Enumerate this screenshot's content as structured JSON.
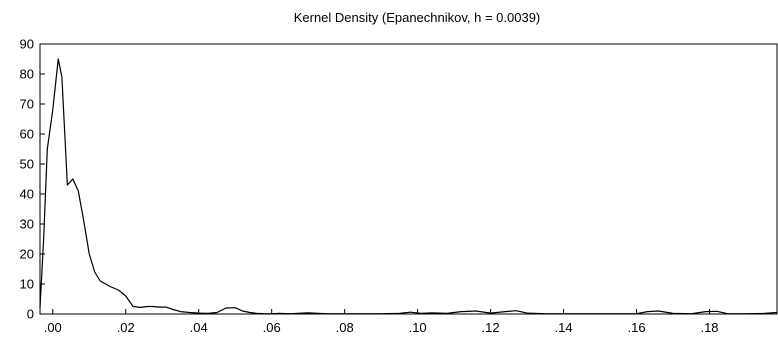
{
  "chart_data": {
    "type": "line",
    "title": "Kernel Density (Epanechnikov, h = 0.0039)",
    "xlabel": "",
    "ylabel": "",
    "xlim": [
      -0.0035,
      0.1985
    ],
    "ylim": [
      0,
      90
    ],
    "x_ticks": [
      0.0,
      0.02,
      0.04,
      0.06,
      0.08,
      0.1,
      0.12,
      0.14,
      0.16,
      0.18
    ],
    "x_tick_labels": [
      ".00",
      ".02",
      ".04",
      ".06",
      ".08",
      ".10",
      ".12",
      ".14",
      ".16",
      ".18"
    ],
    "y_ticks": [
      0,
      10,
      20,
      30,
      40,
      50,
      60,
      70,
      80,
      90
    ],
    "y_tick_labels": [
      "0",
      "10",
      "20",
      "30",
      "40",
      "50",
      "60",
      "70",
      "80",
      "90"
    ],
    "grid": false,
    "line_color": "#000000",
    "series": [
      {
        "x": [
          -0.0035,
          -0.0025,
          -0.0015,
          0.0,
          0.0015,
          0.0025,
          0.004,
          0.0055,
          0.007,
          0.0085,
          0.01,
          0.0115,
          0.013,
          0.0145,
          0.016,
          0.018,
          0.02,
          0.022,
          0.024,
          0.026,
          0.0275,
          0.029,
          0.031,
          0.033,
          0.035,
          0.0375,
          0.04,
          0.0425,
          0.045,
          0.0475,
          0.05,
          0.052,
          0.054,
          0.056,
          0.058,
          0.06,
          0.062,
          0.065,
          0.07,
          0.075,
          0.08,
          0.085,
          0.09,
          0.095,
          0.098,
          0.101,
          0.104,
          0.108,
          0.112,
          0.116,
          0.12,
          0.124,
          0.127,
          0.13,
          0.135,
          0.14,
          0.145,
          0.15,
          0.155,
          0.16,
          0.163,
          0.166,
          0.17,
          0.175,
          0.179,
          0.182,
          0.185,
          0.19,
          0.195,
          0.1985
        ],
        "y": [
          2,
          25,
          55,
          68,
          85,
          79,
          43,
          45,
          41,
          31,
          20,
          14,
          11,
          10,
          9,
          8,
          6,
          2.5,
          2.2,
          2.5,
          2.5,
          2.3,
          2.3,
          1.5,
          0.8,
          0.5,
          0.3,
          0.2,
          0.5,
          2.0,
          2.1,
          1.0,
          0.5,
          0.2,
          0.1,
          0.1,
          0.2,
          0.1,
          0.4,
          0.1,
          0.1,
          0.1,
          0.1,
          0.2,
          0.6,
          0.2,
          0.4,
          0.2,
          0.8,
          1.0,
          0.3,
          0.8,
          1.1,
          0.3,
          0.1,
          0.1,
          0.1,
          0.1,
          0.1,
          0.1,
          0.8,
          1.0,
          0.2,
          0.1,
          0.8,
          0.9,
          0.1,
          0.1,
          0.2,
          0.5
        ]
      }
    ]
  }
}
